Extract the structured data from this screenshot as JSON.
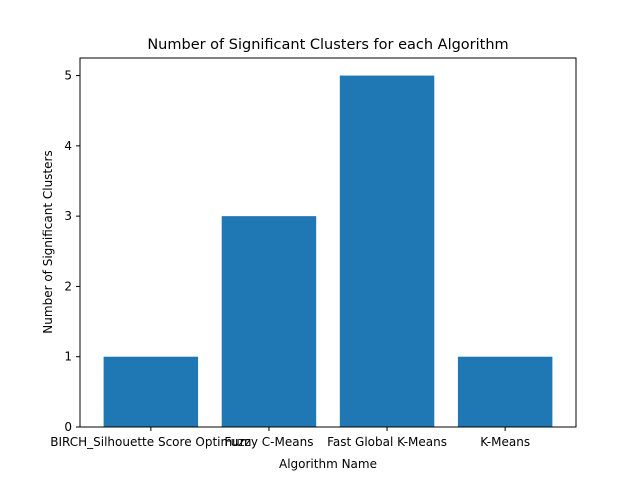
{
  "chart_data": {
    "type": "bar",
    "title": "Number of Significant Clusters for each Algorithm",
    "xlabel": "Algorithm Name",
    "ylabel": "Number of Significant Clusters",
    "categories": [
      "BIRCH_Silhouette Score Optimum",
      "Fuzzy C-Means",
      "Fast Global K-Means",
      "K-Means"
    ],
    "values": [
      1,
      3,
      5,
      1
    ],
    "ylim": [
      0,
      5.25
    ],
    "yticks": [
      0,
      1,
      2,
      3,
      4,
      5
    ],
    "grid": false,
    "legend": "none",
    "bar_color": "#1f77b4"
  }
}
